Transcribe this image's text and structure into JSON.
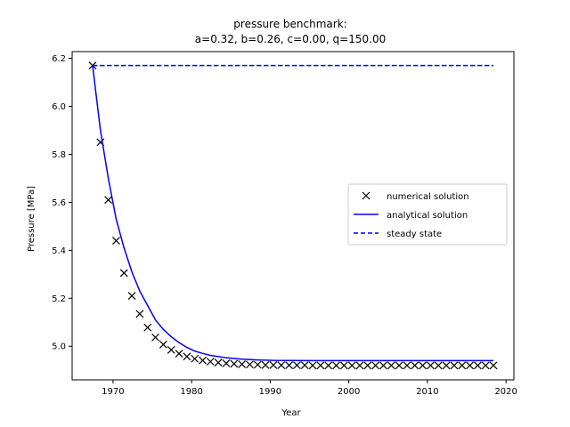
{
  "chart_data": {
    "type": "line",
    "title": "pressure benchmark:",
    "subtitle": "a=0.32, b=0.26, c=0.00, q=150.00",
    "xlabel": "Year",
    "ylabel": "Pressure [MPa]",
    "xlim": [
      1964.8,
      2021.0
    ],
    "ylim": [
      4.86,
      6.228
    ],
    "xticks": [
      1970,
      1980,
      1990,
      2000,
      2010,
      2020
    ],
    "yticks": [
      5.0,
      5.2,
      5.4,
      5.6,
      5.8,
      6.0,
      6.2
    ],
    "ytick_labels": [
      "5.0",
      "5.2",
      "5.4",
      "5.6",
      "5.8",
      "6.0",
      "6.2"
    ],
    "grid": false,
    "legend_position": "center-right",
    "series": [
      {
        "name": "numerical solution",
        "style": "marker-x",
        "color": "#000000",
        "x": [
          1967.4,
          1968.4,
          1969.4,
          1970.4,
          1971.4,
          1972.4,
          1973.4,
          1974.4,
          1975.4,
          1976.4,
          1977.4,
          1978.4,
          1979.4,
          1980.4,
          1981.4,
          1982.4,
          1983.4,
          1984.4,
          1985.4,
          1986.4,
          1987.4,
          1988.4,
          1989.4,
          1990.4,
          1991.4,
          1992.4,
          1993.4,
          1994.4,
          1995.4,
          1996.4,
          1997.4,
          1998.4,
          1999.4,
          2000.4,
          2001.4,
          2002.4,
          2003.4,
          2004.4,
          2005.4,
          2006.4,
          2007.4,
          2008.4,
          2009.4,
          2010.4,
          2011.4,
          2012.4,
          2013.4,
          2014.4,
          2015.4,
          2016.4,
          2017.4,
          2018.4
        ],
        "y": [
          6.17,
          5.85,
          5.61,
          5.44,
          5.305,
          5.21,
          5.135,
          5.078,
          5.037,
          5.007,
          4.985,
          4.969,
          4.957,
          4.948,
          4.941,
          4.936,
          4.932,
          4.929,
          4.927,
          4.925,
          4.924,
          4.923,
          4.922,
          4.922,
          4.921,
          4.921,
          4.921,
          4.921,
          4.92,
          4.92,
          4.92,
          4.92,
          4.92,
          4.92,
          4.92,
          4.92,
          4.92,
          4.92,
          4.92,
          4.92,
          4.92,
          4.92,
          4.92,
          4.92,
          4.92,
          4.92,
          4.92,
          4.92,
          4.92,
          4.92,
          4.92,
          4.92
        ]
      },
      {
        "name": "analytical solution",
        "style": "solid",
        "color": "#0000ff",
        "x": [
          1967.4,
          1968.4,
          1969.4,
          1970.4,
          1971.4,
          1972.4,
          1973.4,
          1974.4,
          1975.4,
          1976.4,
          1977.4,
          1978.4,
          1979.4,
          1980.4,
          1981.4,
          1982.4,
          1984.4,
          1986.4,
          1988.4,
          1990.4,
          1995.4,
          2000.4,
          2005.4,
          2010.4,
          2018.4
        ],
        "y": [
          6.17,
          5.9,
          5.7,
          5.53,
          5.41,
          5.31,
          5.23,
          5.17,
          5.11,
          5.07,
          5.04,
          5.015,
          4.995,
          4.98,
          4.97,
          4.962,
          4.952,
          4.946,
          4.943,
          4.941,
          4.94,
          4.94,
          4.94,
          4.94,
          4.94
        ]
      },
      {
        "name": "steady state",
        "style": "dashed",
        "color": "#0000ff",
        "x": [
          1967.4,
          2018.4
        ],
        "y": [
          6.17,
          6.17
        ]
      }
    ]
  }
}
